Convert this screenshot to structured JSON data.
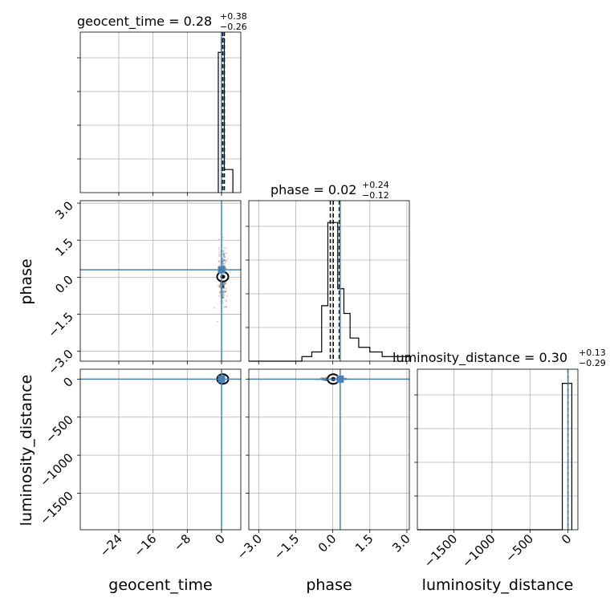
{
  "chart_data": {
    "type": "corner",
    "parameters": [
      "geocent_time",
      "phase",
      "luminosity_distance"
    ],
    "truths": {
      "geocent_time": 0.0,
      "phase": 0.3,
      "luminosity_distance": 0.0
    },
    "truth_color": "#4682b4",
    "grid": true,
    "titles": [
      {
        "param": "geocent_time",
        "prefix": "geocent_time = 0.28",
        "sup": "+0.38",
        "sub": "−0.26"
      },
      {
        "param": "phase",
        "prefix": "phase = 0.02",
        "sup": "+0.24",
        "sub": "−0.12"
      },
      {
        "param": "luminosity_distance",
        "prefix": "luminosity_distance = 0.30",
        "sup": "+0.13",
        "sub": "−0.29"
      }
    ],
    "axes": {
      "geocent_time": {
        "range": [
          -33,
          4.5
        ],
        "ticks": [
          -24,
          -16,
          -8,
          0
        ],
        "tick_labels": [
          "−24",
          "−16",
          "−8",
          "0"
        ],
        "label": "geocent_time"
      },
      "phase": {
        "range": [
          -3.4,
          3.1
        ],
        "ticks": [
          -3.0,
          -1.5,
          0.0,
          1.5,
          3.0
        ],
        "tick_labels": [
          "−3.0",
          "−1.5",
          "0.0",
          "1.5",
          "3.0"
        ],
        "label": "phase"
      },
      "luminosity_distance": {
        "range": [
          -1980,
          130
        ],
        "ticks": [
          -1500,
          -1000,
          -500,
          0
        ],
        "tick_labels": [
          "−1500",
          "−1000",
          "−500",
          "0"
        ],
        "label": "luminosity_distance"
      }
    },
    "histograms": {
      "geocent_time": {
        "edges": [
          -0.75,
          -0.05,
          0.65,
          2.65
        ],
        "counts": [
          0.91,
          1.0,
          0.15
        ],
        "quantiles": [
          0.02,
          0.28,
          0.66
        ]
      },
      "phase": {
        "edges": [
          -3.4,
          -1.25,
          -0.85,
          -0.45,
          -0.2,
          0.0,
          0.2,
          0.45,
          0.7,
          1.05,
          1.5,
          2.0,
          3.1
        ],
        "counts": [
          0.0,
          0.03,
          0.06,
          0.36,
          0.9,
          0.9,
          0.47,
          0.31,
          0.15,
          0.09,
          0.06,
          0.03
        ],
        "quantiles": [
          -0.1,
          0.02,
          0.26
        ]
      },
      "luminosity_distance": {
        "edges": [
          -1980,
          -75,
          50
        ],
        "counts": [
          0.0,
          0.95
        ],
        "quantiles": [
          0.01,
          0.3,
          0.43
        ]
      }
    }
  }
}
